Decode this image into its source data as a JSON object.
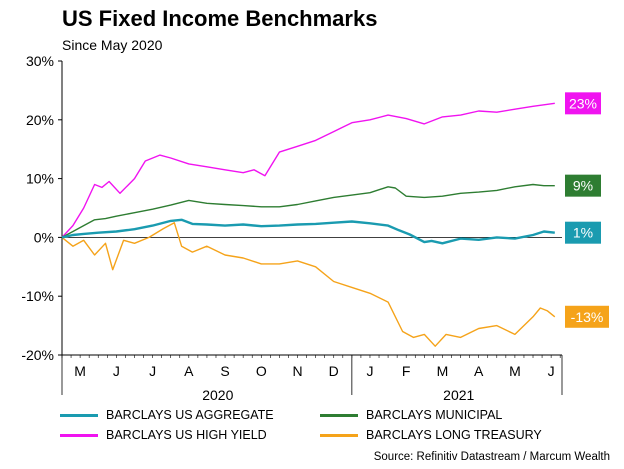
{
  "title": "US Fixed Income Benchmarks",
  "subtitle": "Since May 2020",
  "source": "Source: Refinitiv Datastream / Marcum Wealth",
  "chart_data": {
    "type": "line",
    "ylim": [
      -20,
      30
    ],
    "yticks": [
      "30%",
      "20%",
      "10%",
      "0%",
      "-10%",
      "-20%"
    ],
    "ytick_values": [
      30,
      20,
      10,
      0,
      -10,
      -20
    ],
    "xlim": [
      0,
      13.8
    ],
    "month_ticks": [
      "M",
      "J",
      "J",
      "A",
      "S",
      "O",
      "N",
      "D",
      "J",
      "F",
      "M",
      "A",
      "M",
      "J"
    ],
    "year_labels": [
      {
        "label": "2020",
        "x": 4.3
      },
      {
        "label": "2021",
        "x": 10.95
      }
    ],
    "grid": false,
    "legend_position": "bottom",
    "series": [
      {
        "name": "BARCLAYS US AGGREGATE",
        "color": "#1a9bb0",
        "end_label": "1%",
        "x": [
          0,
          0.3,
          0.6,
          1.0,
          1.5,
          2.0,
          2.5,
          3.0,
          3.3,
          3.6,
          4.0,
          4.5,
          5.0,
          5.5,
          6.0,
          6.5,
          7.0,
          7.5,
          8.0,
          8.5,
          9.0,
          9.3,
          9.6,
          10.0,
          10.2,
          10.5,
          11.0,
          11.5,
          12.0,
          12.5,
          13.0,
          13.3,
          13.6
        ],
        "values": [
          0,
          0.4,
          0.6,
          0.8,
          1.0,
          1.4,
          2.0,
          2.8,
          3.0,
          2.3,
          2.2,
          2.0,
          2.2,
          1.9,
          2.0,
          2.2,
          2.3,
          2.5,
          2.7,
          2.4,
          2.0,
          1.2,
          0.5,
          -0.8,
          -0.6,
          -1.0,
          -0.2,
          -0.4,
          0.0,
          -0.2,
          0.4,
          1.0,
          0.8
        ]
      },
      {
        "name": "BARCLAYS MUNICIPAL",
        "color": "#2e7d32",
        "end_label": "9%",
        "x": [
          0,
          0.3,
          0.6,
          0.9,
          1.2,
          1.5,
          2.0,
          2.5,
          3.0,
          3.5,
          4.0,
          4.5,
          5.0,
          5.5,
          6.0,
          6.5,
          7.0,
          7.5,
          8.0,
          8.5,
          9.0,
          9.2,
          9.5,
          10.0,
          10.5,
          11.0,
          11.5,
          12.0,
          12.5,
          13.0,
          13.3,
          13.6
        ],
        "values": [
          0,
          1.0,
          2.0,
          3.0,
          3.2,
          3.6,
          4.2,
          4.8,
          5.5,
          6.3,
          5.8,
          5.6,
          5.4,
          5.2,
          5.2,
          5.6,
          6.2,
          6.8,
          7.2,
          7.6,
          8.6,
          8.4,
          7.0,
          6.8,
          7.0,
          7.5,
          7.7,
          8.0,
          8.6,
          9.0,
          8.8,
          8.8
        ]
      },
      {
        "name": "BARCLAYS US HIGH YIELD",
        "color": "#f013f0",
        "end_label": "23%",
        "x": [
          0,
          0.3,
          0.6,
          0.9,
          1.1,
          1.3,
          1.6,
          2.0,
          2.3,
          2.7,
          3.0,
          3.5,
          4.0,
          4.5,
          5.0,
          5.3,
          5.6,
          6.0,
          6.5,
          7.0,
          7.5,
          8.0,
          8.5,
          9.0,
          9.5,
          10.0,
          10.5,
          11.0,
          11.5,
          12.0,
          12.5,
          13.0,
          13.6
        ],
        "values": [
          0,
          2.0,
          5.0,
          9.0,
          8.5,
          9.5,
          7.5,
          10.0,
          13.0,
          14.0,
          13.5,
          12.5,
          12.0,
          11.5,
          11.0,
          11.5,
          10.5,
          14.5,
          15.5,
          16.5,
          18.0,
          19.5,
          20.0,
          20.8,
          20.2,
          19.3,
          20.5,
          20.8,
          21.5,
          21.3,
          21.8,
          22.3,
          22.8
        ]
      },
      {
        "name": "BARCLAYS LONG TREASURY",
        "color": "#f5a31a",
        "end_label": "-13%",
        "x": [
          0,
          0.3,
          0.6,
          0.9,
          1.2,
          1.4,
          1.7,
          2.0,
          2.4,
          2.8,
          3.1,
          3.3,
          3.6,
          4.0,
          4.5,
          5.0,
          5.5,
          6.0,
          6.5,
          7.0,
          7.5,
          8.0,
          8.5,
          9.0,
          9.4,
          9.7,
          10.0,
          10.3,
          10.6,
          11.0,
          11.5,
          12.0,
          12.5,
          13.0,
          13.2,
          13.4,
          13.6
        ],
        "values": [
          0,
          -1.5,
          -0.5,
          -3.0,
          -1.0,
          -5.5,
          -0.5,
          -1.0,
          0.0,
          1.5,
          2.5,
          -1.5,
          -2.5,
          -1.5,
          -3.0,
          -3.5,
          -4.5,
          -4.5,
          -4.0,
          -5.0,
          -7.5,
          -8.5,
          -9.5,
          -11.0,
          -16.0,
          -17.0,
          -16.5,
          -18.5,
          -16.5,
          -17.0,
          -15.5,
          -15.0,
          -16.5,
          -13.5,
          -12.0,
          -12.5,
          -13.5
        ]
      }
    ],
    "legend": [
      {
        "label": "BARCLAYS US AGGREGATE",
        "color": "#1a9bb0"
      },
      {
        "label": "BARCLAYS MUNICIPAL",
        "color": "#2e7d32"
      },
      {
        "label": "BARCLAYS US HIGH YIELD",
        "color": "#f013f0"
      },
      {
        "label": "BARCLAYS LONG TREASURY",
        "color": "#f5a31a"
      }
    ]
  }
}
